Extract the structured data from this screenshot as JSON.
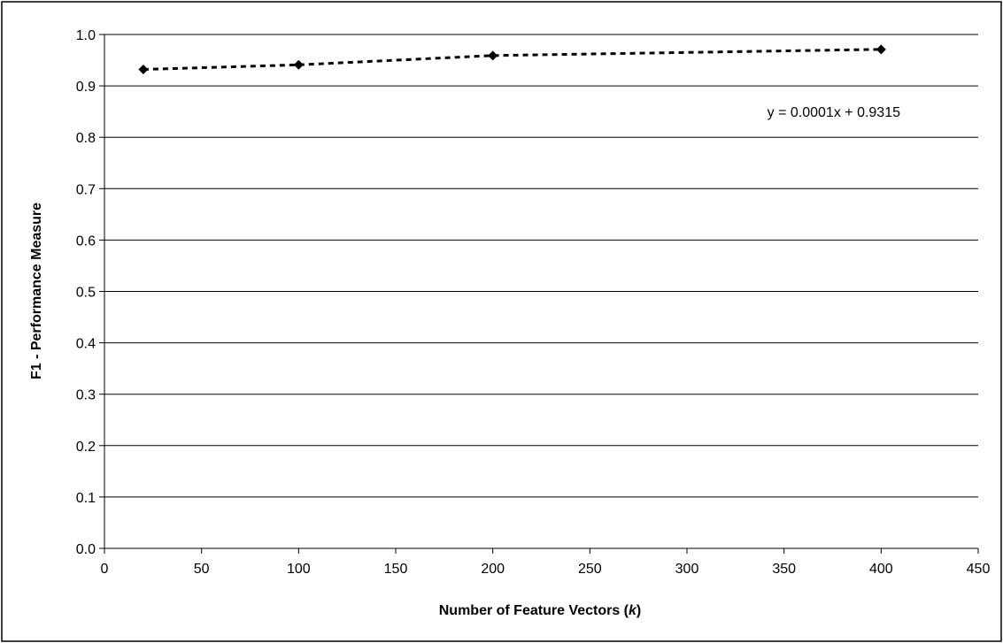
{
  "chart_data": {
    "type": "scatter",
    "title": "",
    "xlabel": "Number of Feature Vectors (",
    "xlabel_var": "k",
    "xlabel_close": ")",
    "ylabel": "F1 - Performance Measure",
    "xlim": [
      0,
      450
    ],
    "ylim": [
      0.0,
      1.0
    ],
    "x_ticks": [
      "0",
      "50",
      "100",
      "150",
      "200",
      "250",
      "300",
      "350",
      "400",
      "450"
    ],
    "y_ticks": [
      "0.0",
      "0.1",
      "0.2",
      "0.3",
      "0.4",
      "0.5",
      "0.6",
      "0.7",
      "0.8",
      "0.9",
      "1.0"
    ],
    "horizontal_grid": true,
    "vertical_grid": false,
    "legend": "none",
    "series": [
      {
        "marker": "diamond",
        "color": "#000000",
        "x": [
          20,
          100,
          200,
          400
        ],
        "y": [
          0.932,
          0.941,
          0.959,
          0.971
        ]
      }
    ],
    "trendline": {
      "style": "dotted",
      "color": "#000000",
      "equation": "y = 0.0001x + 0.9315"
    }
  }
}
